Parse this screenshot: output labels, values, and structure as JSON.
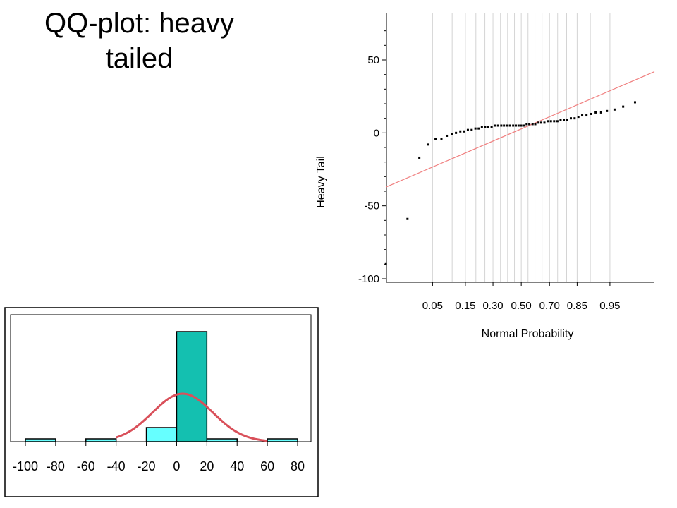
{
  "slide": {
    "title_line1": "QQ-plot: heavy",
    "title_line2": "tailed"
  },
  "colors": {
    "reference_line": "#f08080",
    "points": "#000000",
    "grid": "#d4d4d4",
    "hist_fill_center": "#14c0b0",
    "hist_fill_tails": "#66ffff",
    "normal_curve": "#d9505a"
  },
  "chart_data": [
    {
      "type": "scatter",
      "title": "",
      "xlabel": "Normal Probability",
      "ylabel": "Heavy Tail",
      "ylim": [
        -100,
        70
      ],
      "yticks": [
        50,
        0,
        -50,
        -100
      ],
      "xticks": [
        {
          "p": 0.05,
          "label": "0.05"
        },
        {
          "p": 0.15,
          "label": "0.15"
        },
        {
          "p": 0.3,
          "label": "0.30"
        },
        {
          "p": 0.5,
          "label": "0.50"
        },
        {
          "p": 0.7,
          "label": "0.70"
        },
        {
          "p": 0.85,
          "label": "0.85"
        },
        {
          "p": 0.95,
          "label": "0.95"
        }
      ],
      "grid_x_probabilities": [
        0.05,
        0.1,
        0.15,
        0.2,
        0.25,
        0.3,
        0.35,
        0.4,
        0.45,
        0.5,
        0.55,
        0.6,
        0.65,
        0.7,
        0.75,
        0.8,
        0.85,
        0.9,
        0.95
      ],
      "reference_line": {
        "z_start": -2.5,
        "y_start": -37,
        "z_end": 2.47,
        "y_end": 42
      },
      "grid": true,
      "points": [
        {
          "z": -2.51,
          "y": -90
        },
        {
          "z": -2.11,
          "y": -59
        },
        {
          "z": -1.89,
          "y": -17
        },
        {
          "z": -1.73,
          "y": -8
        },
        {
          "z": -1.59,
          "y": -4
        },
        {
          "z": -1.48,
          "y": -4
        },
        {
          "z": -1.38,
          "y": -2
        },
        {
          "z": -1.29,
          "y": -1
        },
        {
          "z": -1.21,
          "y": 0
        },
        {
          "z": -1.13,
          "y": 1
        },
        {
          "z": -1.06,
          "y": 1
        },
        {
          "z": -0.99,
          "y": 2
        },
        {
          "z": -0.92,
          "y": 2
        },
        {
          "z": -0.85,
          "y": 3
        },
        {
          "z": -0.79,
          "y": 3
        },
        {
          "z": -0.73,
          "y": 4
        },
        {
          "z": -0.67,
          "y": 4
        },
        {
          "z": -0.61,
          "y": 4
        },
        {
          "z": -0.55,
          "y": 4
        },
        {
          "z": -0.49,
          "y": 5
        },
        {
          "z": -0.43,
          "y": 5
        },
        {
          "z": -0.37,
          "y": 5
        },
        {
          "z": -0.32,
          "y": 5
        },
        {
          "z": -0.26,
          "y": 5
        },
        {
          "z": -0.21,
          "y": 5
        },
        {
          "z": -0.15,
          "y": 5
        },
        {
          "z": -0.1,
          "y": 5
        },
        {
          "z": -0.05,
          "y": 5
        },
        {
          "z": 0.0,
          "y": 5
        },
        {
          "z": 0.05,
          "y": 5
        },
        {
          "z": 0.1,
          "y": 6
        },
        {
          "z": 0.15,
          "y": 6
        },
        {
          "z": 0.21,
          "y": 6
        },
        {
          "z": 0.26,
          "y": 6
        },
        {
          "z": 0.32,
          "y": 7
        },
        {
          "z": 0.37,
          "y": 7
        },
        {
          "z": 0.43,
          "y": 7
        },
        {
          "z": 0.49,
          "y": 8
        },
        {
          "z": 0.55,
          "y": 8
        },
        {
          "z": 0.61,
          "y": 8
        },
        {
          "z": 0.67,
          "y": 8
        },
        {
          "z": 0.73,
          "y": 9
        },
        {
          "z": 0.79,
          "y": 9
        },
        {
          "z": 0.85,
          "y": 9
        },
        {
          "z": 0.92,
          "y": 10
        },
        {
          "z": 0.99,
          "y": 10
        },
        {
          "z": 1.06,
          "y": 11
        },
        {
          "z": 1.13,
          "y": 12
        },
        {
          "z": 1.21,
          "y": 12
        },
        {
          "z": 1.29,
          "y": 13
        },
        {
          "z": 1.38,
          "y": 14
        },
        {
          "z": 1.48,
          "y": 14
        },
        {
          "z": 1.59,
          "y": 15
        },
        {
          "z": 1.73,
          "y": 16
        },
        {
          "z": 1.89,
          "y": 18
        },
        {
          "z": 2.11,
          "y": 21
        }
      ]
    },
    {
      "type": "bar",
      "title": "",
      "xlabel": "",
      "ylabel": "",
      "xlim": [
        -110,
        90
      ],
      "xticks": [
        "-100",
        "-80",
        "-60",
        "-40",
        "-20",
        "0",
        "20",
        "40",
        "60",
        "80"
      ],
      "xtick_values": [
        -100,
        -80,
        -60,
        -40,
        -20,
        0,
        20,
        40,
        60,
        80
      ],
      "bins": [
        {
          "from": -100,
          "to": -80,
          "count": 1
        },
        {
          "from": -60,
          "to": -40,
          "count": 1
        },
        {
          "from": -20,
          "to": 0,
          "count": 5
        },
        {
          "from": 0,
          "to": 20,
          "count": 39
        },
        {
          "from": 20,
          "to": 40,
          "count": 1
        },
        {
          "from": 60,
          "to": 80,
          "count": 1
        }
      ],
      "ylim": [
        0,
        43
      ],
      "normal_curve": {
        "mean": 4,
        "sd": 20,
        "peak_count": 17
      }
    }
  ]
}
